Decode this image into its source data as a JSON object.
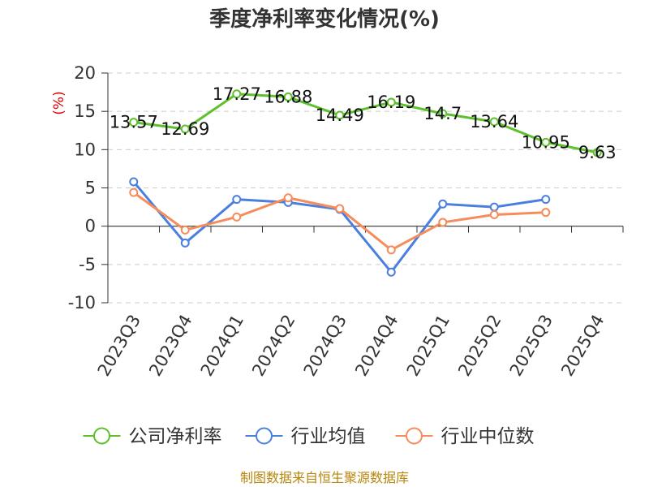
{
  "chart_data": {
    "type": "line",
    "title": "季度净利率变化情况(%)",
    "ylabel": "(%)",
    "xlabel": "",
    "ylim": [
      -10,
      20
    ],
    "yticks": [
      20,
      15,
      10,
      5,
      0,
      -5,
      -10
    ],
    "categories": [
      "2023Q3",
      "2023Q4",
      "2024Q1",
      "2024Q2",
      "2024Q3",
      "2024Q4",
      "2025Q1",
      "2025Q2",
      "2025Q3",
      "2025Q4"
    ],
    "grid": true,
    "legend_position": "bottom",
    "series": [
      {
        "name": "公司净利率",
        "color": "#5cc12a",
        "labels": true,
        "values": [
          13.57,
          12.69,
          17.27,
          16.88,
          14.49,
          16.19,
          14.7,
          13.64,
          10.95,
          9.63
        ]
      },
      {
        "name": "行业均值",
        "color": "#4a7fe0",
        "labels": false,
        "values": [
          5.8,
          -2.2,
          3.5,
          3.1,
          2.2,
          -6.0,
          2.9,
          2.5,
          3.5,
          null
        ]
      },
      {
        "name": "行业中位数",
        "color": "#f58c5a",
        "labels": false,
        "values": [
          4.4,
          -0.5,
          1.2,
          3.7,
          2.3,
          -3.1,
          0.5,
          1.5,
          1.8,
          null
        ]
      }
    ],
    "source": "制图数据来自恒生聚源数据库"
  }
}
